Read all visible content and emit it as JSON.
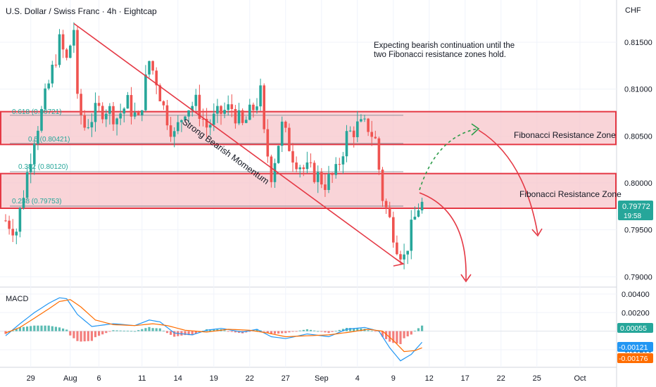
{
  "header": {
    "title": "U.S. Dollar / Swiss Franc · 4h · Eightcap",
    "currency": "CHF"
  },
  "annotation": {
    "line1": "Expecting bearish continuation until the",
    "line2": "two Fibonacci resistance zones hold."
  },
  "trend_label": "Strong Bearish Momentum",
  "zones": [
    {
      "label": "Fibonacci Resistance Zone",
      "top": 0.8076,
      "bottom": 0.8041
    },
    {
      "label": "Fibonacci Resistance Zone",
      "top": 0.801,
      "bottom": 0.7973
    }
  ],
  "fib_levels": [
    {
      "label": "0.618 (0.80721)",
      "value": 0.80721
    },
    {
      "label": "0.5 (0.80421)",
      "value": 0.80421
    },
    {
      "label": "0.382 (0.80120)",
      "value": 0.8012
    },
    {
      "label": "0.238 (0.79753)",
      "value": 0.79753
    }
  ],
  "last_price": {
    "value": "0.79772",
    "countdown": "19:58",
    "color": "#26a69a"
  },
  "macd_panel": {
    "label": "MACD",
    "badges": [
      {
        "value": "0.00055",
        "color": "#26a69a"
      },
      {
        "value": "-0.00121",
        "color": "#2196f3"
      },
      {
        "value": "-0.00176",
        "color": "#ff6d00"
      }
    ]
  },
  "colors": {
    "up": "#26a69a",
    "down": "#ef5350",
    "zone_fill": "#f7c5cb",
    "zone_border": "#e53945",
    "trend": "#e53945",
    "fib": "#26a69a",
    "macd": "#2196f3",
    "signal": "#ff6d00"
  },
  "chart_data": [
    {
      "type": "candlestick",
      "title": "U.S. Dollar / Swiss Franc · 4h · Eightcap",
      "y_ticks": [
        0.815,
        0.81,
        0.805,
        0.8,
        0.795,
        0.79
      ],
      "y_tick_labels": [
        "0.81500",
        "0.81000",
        "0.80500",
        "0.80000",
        "0.79500",
        "0.79000"
      ],
      "ylim": [
        0.7889,
        0.8195
      ],
      "x_tick_labels": [
        "29",
        "Aug",
        "6",
        "11",
        "14",
        "19",
        "22",
        "27",
        "Sep",
        "4",
        "9",
        "12",
        "17",
        "22",
        "25",
        "Oct"
      ],
      "x_tick_index": [
        7,
        18,
        26,
        38,
        48,
        58,
        68,
        78,
        88,
        98,
        108,
        118,
        128,
        138,
        148,
        160
      ],
      "price_path": [
        [
          0,
          0.796
        ],
        [
          3,
          0.795
        ],
        [
          6,
          0.801
        ],
        [
          8,
          0.805
        ],
        [
          10,
          0.8075
        ],
        [
          13,
          0.812
        ],
        [
          15,
          0.815
        ],
        [
          17,
          0.813
        ],
        [
          19,
          0.8165
        ],
        [
          20,
          0.8085
        ],
        [
          22,
          0.806
        ],
        [
          25,
          0.8075
        ],
        [
          28,
          0.808
        ],
        [
          31,
          0.807
        ],
        [
          34,
          0.8085
        ],
        [
          37,
          0.8065
        ],
        [
          40,
          0.813
        ],
        [
          42,
          0.811
        ],
        [
          44,
          0.808
        ],
        [
          47,
          0.805
        ],
        [
          50,
          0.808
        ],
        [
          53,
          0.8085
        ],
        [
          56,
          0.806
        ],
        [
          60,
          0.8075
        ],
        [
          63,
          0.808
        ],
        [
          66,
          0.806
        ],
        [
          69,
          0.808
        ],
        [
          71,
          0.8095
        ],
        [
          72,
          0.805
        ],
        [
          74,
          0.801
        ],
        [
          77,
          0.806
        ],
        [
          80,
          0.803
        ],
        [
          83,
          0.8015
        ],
        [
          86,
          0.801
        ],
        [
          89,
          0.8
        ],
        [
          92,
          0.801
        ],
        [
          95,
          0.805
        ],
        [
          98,
          0.806
        ],
        [
          101,
          0.806
        ],
        [
          103,
          0.8045
        ],
        [
          105,
          0.7985
        ],
        [
          107,
          0.796
        ],
        [
          109,
          0.7935
        ],
        [
          111,
          0.792
        ],
        [
          113,
          0.795
        ],
        [
          115,
          0.7975
        ],
        [
          116,
          0.7977
        ]
      ],
      "macd_y_ticks": [
        0.004,
        0.002,
        -0.002
      ],
      "macd_y_tick_labels": [
        "0.00400",
        "0.00200",
        "-0.00200"
      ],
      "macd_ylim": [
        -0.0039,
        0.0046
      ],
      "macd_line_path": [
        [
          0,
          -0.0005
        ],
        [
          4,
          0.0008
        ],
        [
          8,
          0.002
        ],
        [
          12,
          0.003
        ],
        [
          15,
          0.0036
        ],
        [
          17,
          0.0035
        ],
        [
          20,
          0.0018
        ],
        [
          24,
          0.0005
        ],
        [
          30,
          0.0008
        ],
        [
          36,
          0.0006
        ],
        [
          40,
          0.0012
        ],
        [
          43,
          0.001
        ],
        [
          47,
          -0.0002
        ],
        [
          52,
          -0.0004
        ],
        [
          56,
          0.0001
        ],
        [
          60,
          0.0003
        ],
        [
          66,
          -0.0001
        ],
        [
          70,
          0.0002
        ],
        [
          74,
          -0.0006
        ],
        [
          78,
          -0.0008
        ],
        [
          84,
          -0.0003
        ],
        [
          90,
          -0.0006
        ],
        [
          95,
          0.0002
        ],
        [
          100,
          0.0004
        ],
        [
          104,
          0.0
        ],
        [
          107,
          -0.0018
        ],
        [
          110,
          -0.0032
        ],
        [
          113,
          -0.0025
        ],
        [
          116,
          -0.0012
        ]
      ],
      "signal_line_path": [
        [
          0,
          -0.0002
        ],
        [
          4,
          0.0004
        ],
        [
          8,
          0.0014
        ],
        [
          12,
          0.0024
        ],
        [
          15,
          0.0032
        ],
        [
          18,
          0.0034
        ],
        [
          21,
          0.0026
        ],
        [
          25,
          0.0012
        ],
        [
          30,
          0.0007
        ],
        [
          36,
          0.0006
        ],
        [
          41,
          0.0008
        ],
        [
          45,
          0.0006
        ],
        [
          50,
          0.0001
        ],
        [
          56,
          -0.0001
        ],
        [
          62,
          0.0002
        ],
        [
          68,
          0.0001
        ],
        [
          73,
          -0.0002
        ],
        [
          78,
          -0.0006
        ],
        [
          84,
          -0.0005
        ],
        [
          90,
          -0.0004
        ],
        [
          96,
          -0.0001
        ],
        [
          101,
          0.0002
        ],
        [
          105,
          0.0
        ],
        [
          108,
          -0.001
        ],
        [
          111,
          -0.0022
        ],
        [
          114,
          -0.0021
        ],
        [
          116,
          -0.0018
        ]
      ]
    }
  ]
}
